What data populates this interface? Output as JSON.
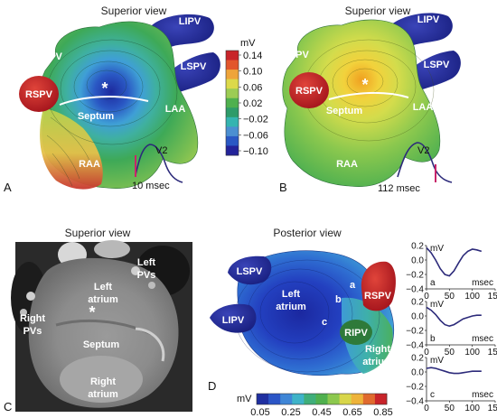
{
  "panels": {
    "A": {
      "letter": "A",
      "view": "Superior view",
      "labels": {
        "ripv": "RIPV",
        "lipv": "LIPV",
        "lspv": "LSPV",
        "rspv": "RSPV",
        "septum": "Septum",
        "laa": "LAA",
        "raa": "RAA",
        "star": "*"
      },
      "trace_label": "V2",
      "time_label": "10 msec",
      "colorbar": {
        "unit": "mV",
        "ticks": [
          "0.14",
          "0.10",
          "0.06",
          "0.02",
          "−0.02",
          "−0.06",
          "−0.10"
        ],
        "colors": [
          "#c8242a",
          "#e2562c",
          "#eea43a",
          "#dcd94a",
          "#9ccc54",
          "#4fb04e",
          "#2e9b69",
          "#35b4b0",
          "#4b8fd1",
          "#2a58c4",
          "#23239a"
        ]
      }
    },
    "B": {
      "letter": "B",
      "view": "Superior view",
      "labels": {
        "ripv": "RIPV",
        "lipv": "LIPV",
        "lspv": "LSPV",
        "rspv": "RSPV",
        "septum": "Septum",
        "laa": "LAA",
        "raa": "RAA",
        "star": "*"
      },
      "trace_label": "V2",
      "time_label": "112 msec"
    },
    "C": {
      "letter": "C",
      "view": "Superior view",
      "labels": {
        "left_pvs_1": "Left",
        "left_pvs_2": "PVs",
        "left_atrium_1": "Left",
        "left_atrium_2": "atrium",
        "right_pvs_1": "Right",
        "right_pvs_2": "PVs",
        "star": "*",
        "septum": "Septum",
        "right_atrium_1": "Right",
        "right_atrium_2": "atrium"
      }
    },
    "D": {
      "letter": "D",
      "view": "Posterior view",
      "labels": {
        "lspv": "LSPV",
        "lipv": "LIPV",
        "rspv": "RSPV",
        "ripv": "RIPV",
        "left_atrium_1": "Left",
        "left_atrium_2": "atrium",
        "right_atrium_1": "Right",
        "right_atrium_2": "atrium",
        "a": "a",
        "b": "b",
        "c": "c"
      },
      "colorbar": {
        "unit": "mV",
        "ticks": [
          "0.05",
          "0.25",
          "0.45",
          "0.65",
          "0.85"
        ],
        "colors": [
          "#1f2fa0",
          "#2b55c6",
          "#3f86d6",
          "#3fb3c8",
          "#3fae7a",
          "#4fb04e",
          "#8cc84e",
          "#d8d64a",
          "#eeb33a",
          "#e06a2e",
          "#c8242a"
        ]
      },
      "mini_plots": [
        {
          "letter": "a",
          "unit": "mV",
          "xunit": "msec",
          "yticks": [
            "0.2",
            "0.0",
            "−0.2",
            "−0.4"
          ],
          "xticks": [
            "0",
            "50",
            "100",
            "150"
          ],
          "x": [
            0,
            10,
            20,
            30,
            40,
            50,
            60,
            70,
            80,
            90,
            100,
            110,
            120
          ],
          "y": [
            0.17,
            0.1,
            0.0,
            -0.12,
            -0.2,
            -0.22,
            -0.15,
            -0.04,
            0.06,
            0.12,
            0.15,
            0.14,
            0.12
          ]
        },
        {
          "letter": "b",
          "unit": "mV",
          "xunit": "msec",
          "yticks": [
            "0.2",
            "0.0",
            "−0.2",
            "−0.4"
          ],
          "xticks": [
            "0",
            "50",
            "100",
            "150"
          ],
          "x": [
            0,
            10,
            20,
            30,
            40,
            50,
            60,
            70,
            80,
            90,
            100,
            110,
            120
          ],
          "y": [
            0.12,
            0.08,
            0.02,
            -0.06,
            -0.12,
            -0.14,
            -0.12,
            -0.08,
            -0.04,
            -0.02,
            0.0,
            0.01,
            0.01
          ]
        },
        {
          "letter": "c",
          "unit": "mV",
          "xunit": "msec",
          "yticks": [
            "0.2",
            "0.0",
            "−0.2",
            "−0.4"
          ],
          "xticks": [
            "0",
            "50",
            "100",
            "150"
          ],
          "x": [
            0,
            10,
            20,
            30,
            40,
            50,
            60,
            70,
            80,
            90,
            100,
            110,
            120
          ],
          "y": [
            0.05,
            0.06,
            0.05,
            0.03,
            0.01,
            -0.01,
            -0.02,
            -0.02,
            -0.01,
            0.0,
            0.01,
            0.01,
            0.01
          ]
        }
      ]
    }
  }
}
